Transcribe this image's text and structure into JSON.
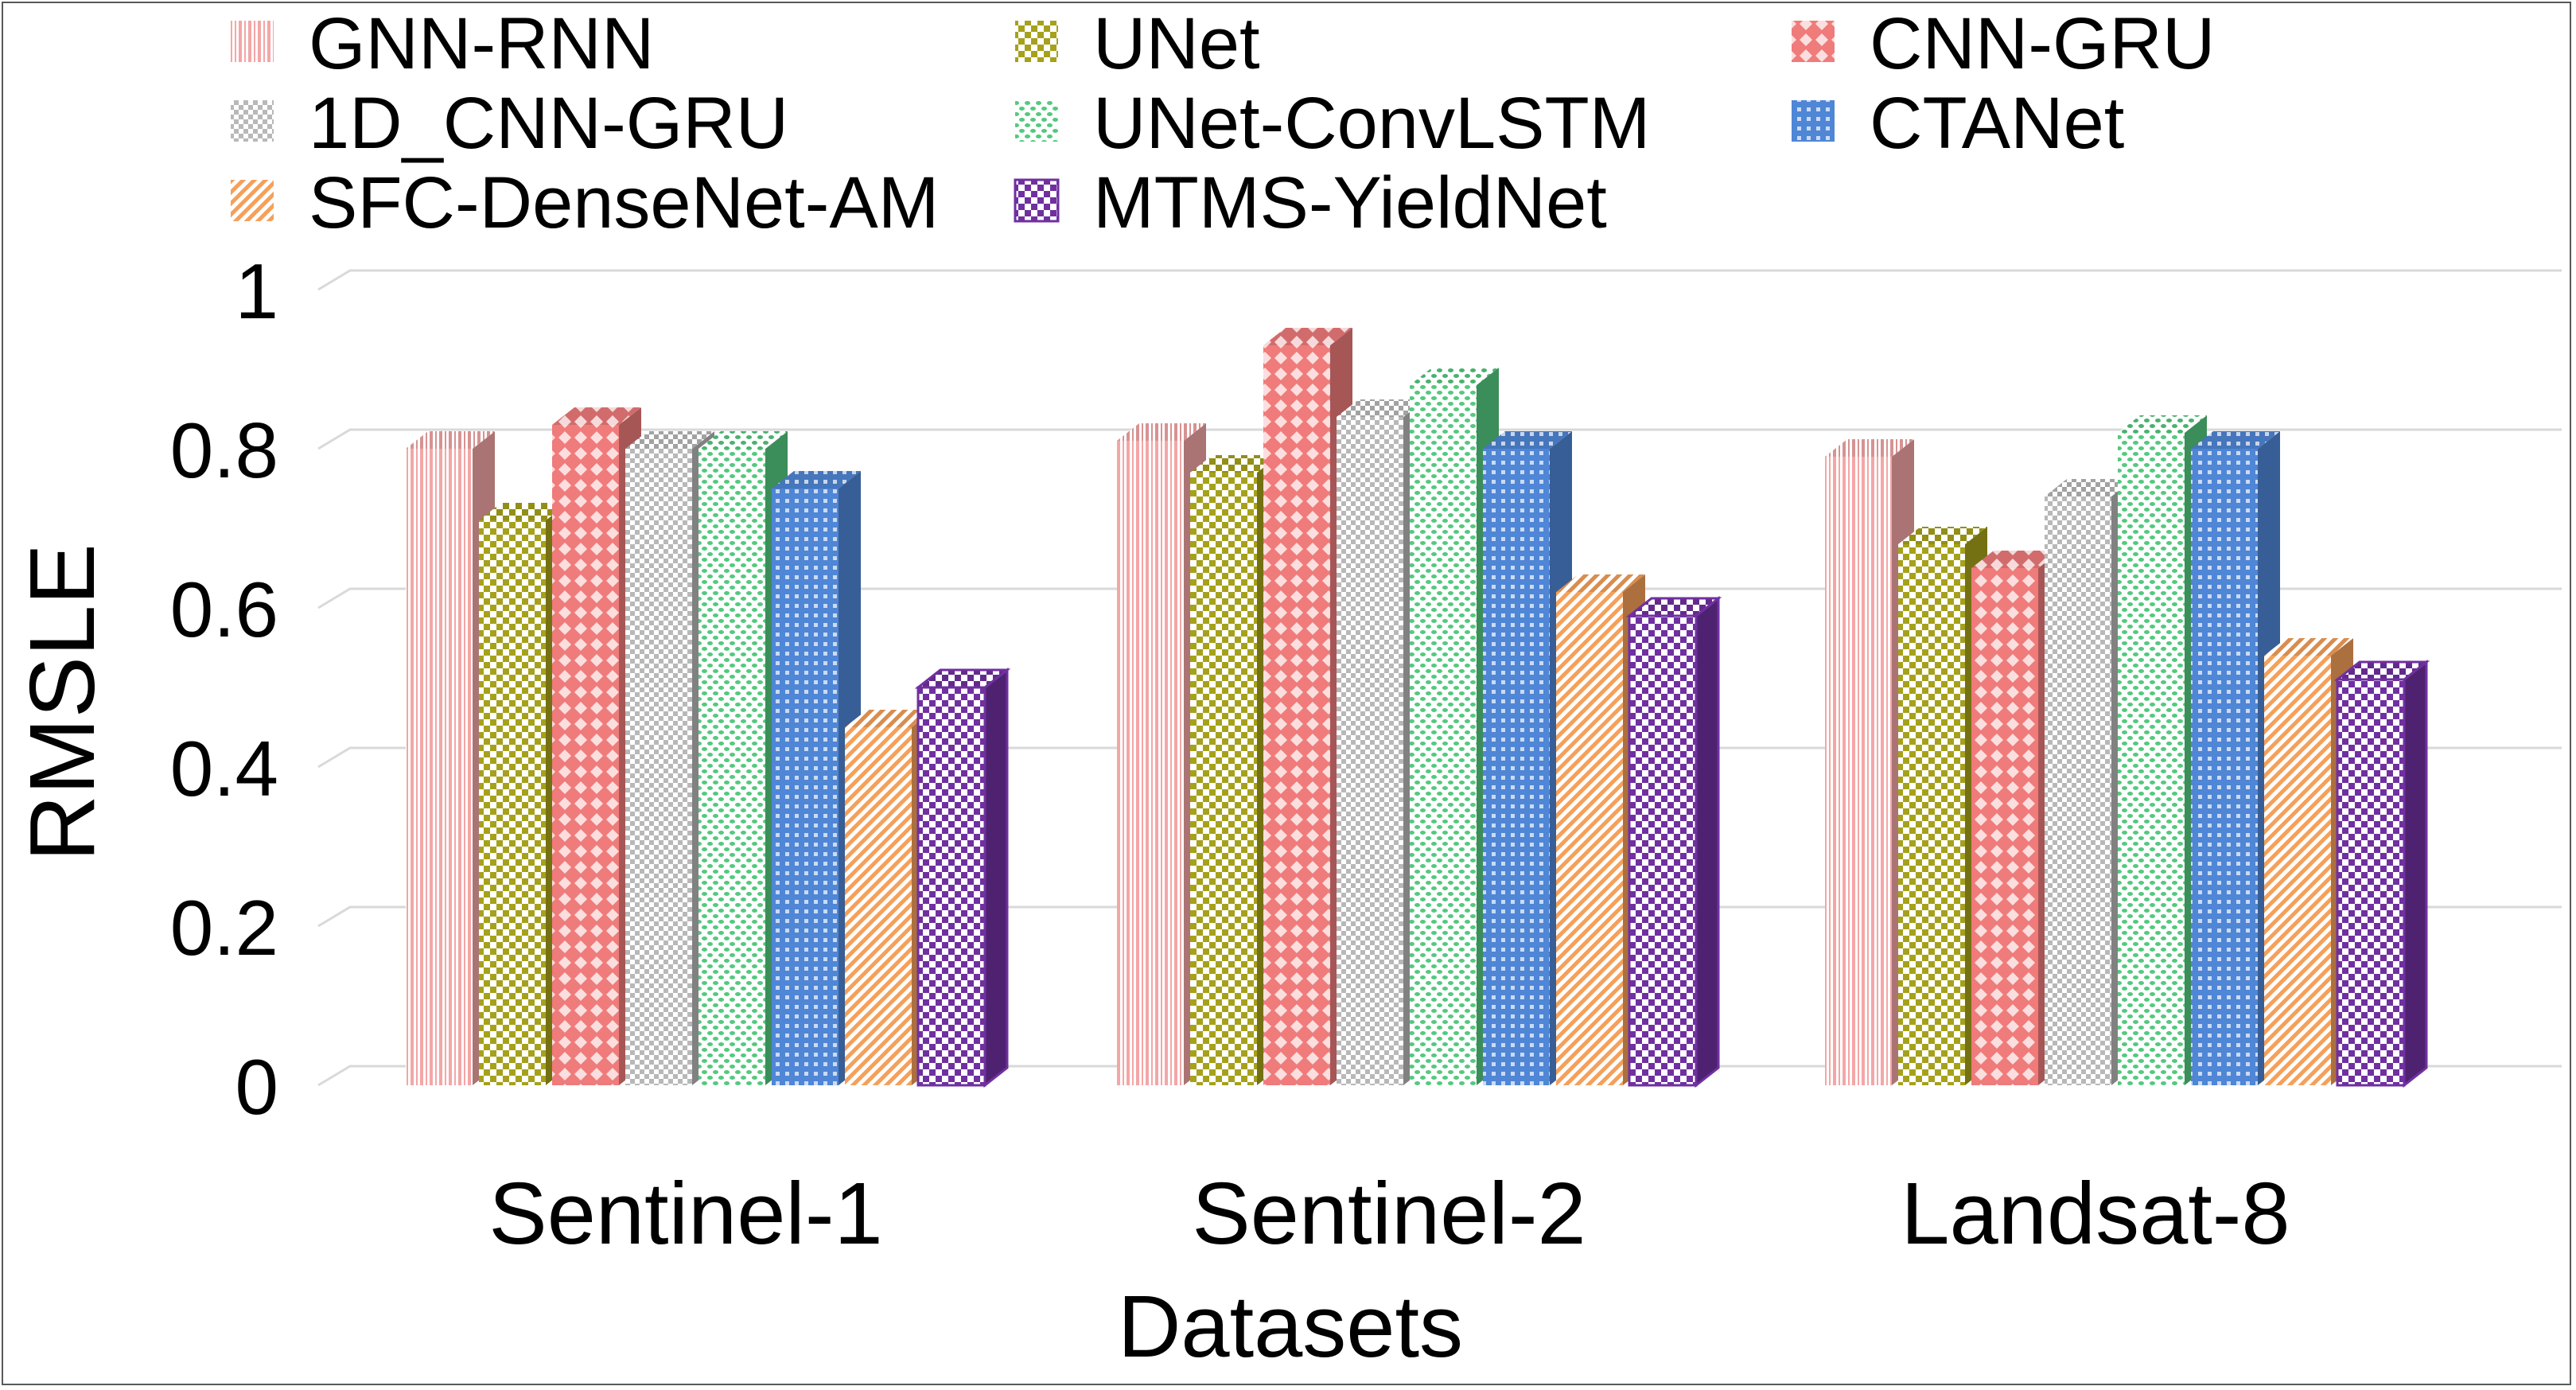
{
  "chart_data": {
    "type": "bar",
    "title": "",
    "xlabel": "Datasets",
    "ylabel": "RMSLE",
    "ylim": [
      0,
      1
    ],
    "yticks": [
      0,
      0.2,
      0.4,
      0.6,
      0.8,
      1
    ],
    "ytick_labels": [
      "0",
      "0.2",
      "0.4",
      "0.6",
      "0.8",
      "1"
    ],
    "grid": true,
    "legend_position": "top",
    "categories": [
      "Sentinel-1",
      "Sentinel-2",
      "Landsat-8"
    ],
    "series": [
      {
        "name": "GNN-RNN",
        "values": [
          0.8,
          0.81,
          0.79
        ],
        "color": "#f4a6a6",
        "pattern": "vertical-stripes"
      },
      {
        "name": "UNet",
        "values": [
          0.71,
          0.77,
          0.68
        ],
        "color": "#a6a11a",
        "pattern": "checker"
      },
      {
        "name": "CNN-GRU",
        "values": [
          0.83,
          0.93,
          0.65
        ],
        "color": "#ef7b7b",
        "pattern": "diamond"
      },
      {
        "name": "1D_CNN-GRU",
        "values": [
          0.8,
          0.84,
          0.74
        ],
        "color": "#b8b8b8",
        "pattern": "checker-small"
      },
      {
        "name": "UNet-ConvLSTM",
        "values": [
          0.8,
          0.88,
          0.82
        ],
        "color": "#54c97f",
        "pattern": "dots"
      },
      {
        "name": "CTANet",
        "values": [
          0.75,
          0.8,
          0.8
        ],
        "color": "#4f86d6",
        "pattern": "grid"
      },
      {
        "name": "SFC-DenseNet-AM",
        "values": [
          0.45,
          0.62,
          0.54
        ],
        "color": "#f5a05a",
        "pattern": "diagonal"
      },
      {
        "name": "MTMS-YieldNet",
        "values": [
          0.5,
          0.59,
          0.51
        ],
        "color": "#7030a0",
        "pattern": "checker-bold"
      }
    ]
  }
}
